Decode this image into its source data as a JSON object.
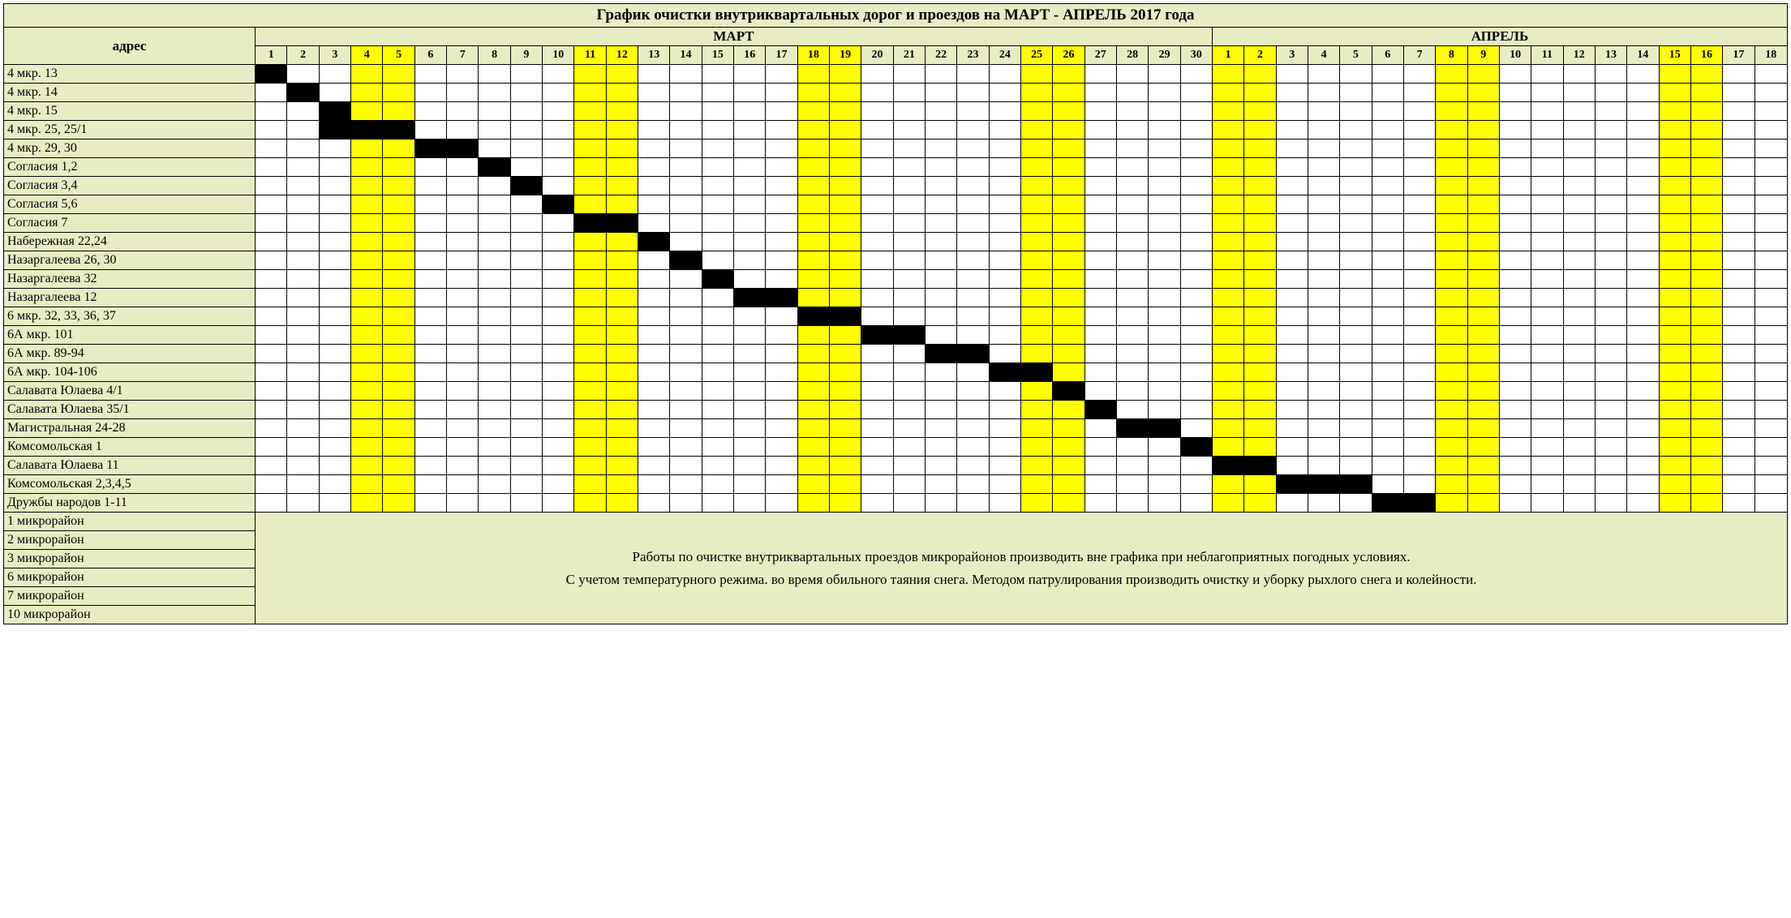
{
  "colors": {
    "header_bg": "#e8ecc5",
    "weekend_bg": "#ffff00",
    "black_fill": "#000000",
    "white_fill": "#ffffff"
  },
  "title": "График очистки внутриквартальных дорог и проездов на МАРТ - АПРЕЛЬ  2017 года",
  "address_header": "адрес",
  "months": [
    {
      "label": "МАРТ",
      "days": 30
    },
    {
      "label": "АПРЕЛЬ",
      "days": 18
    }
  ],
  "march_days": [
    1,
    2,
    3,
    4,
    5,
    6,
    7,
    8,
    9,
    10,
    11,
    12,
    13,
    14,
    15,
    16,
    17,
    18,
    19,
    20,
    21,
    22,
    23,
    24,
    25,
    26,
    27,
    28,
    29,
    30
  ],
  "april_days": [
    1,
    2,
    3,
    4,
    5,
    6,
    7,
    8,
    9,
    10,
    11,
    12,
    13,
    14,
    15,
    16,
    17,
    18
  ],
  "march_weekends": [
    4,
    5,
    11,
    12,
    18,
    19,
    25,
    26
  ],
  "april_weekends": [
    1,
    2,
    8,
    9,
    15,
    16
  ],
  "schedule_rows": [
    {
      "addr": "4 мкр. 13",
      "black": [
        [
          "m",
          1
        ]
      ]
    },
    {
      "addr": "4 мкр. 14",
      "black": [
        [
          "m",
          2
        ]
      ]
    },
    {
      "addr": "4 мкр. 15",
      "black": [
        [
          "m",
          3
        ]
      ]
    },
    {
      "addr": "4 мкр. 25, 25/1",
      "black": [
        [
          "m",
          3
        ],
        [
          "m",
          4
        ],
        [
          "m",
          5
        ]
      ]
    },
    {
      "addr": "4 мкр. 29, 30",
      "black": [
        [
          "m",
          6
        ],
        [
          "m",
          7
        ]
      ]
    },
    {
      "addr": "Согласия 1,2",
      "black": [
        [
          "m",
          8
        ]
      ]
    },
    {
      "addr": "Согласия 3,4",
      "black": [
        [
          "m",
          9
        ]
      ]
    },
    {
      "addr": "Согласия 5,6",
      "black": [
        [
          "m",
          10
        ]
      ]
    },
    {
      "addr": "Согласия 7",
      "black": [
        [
          "m",
          11
        ],
        [
          "m",
          12
        ]
      ]
    },
    {
      "addr": "Набережная 22,24",
      "black": [
        [
          "m",
          13
        ]
      ]
    },
    {
      "addr": "Назаргалеева 26, 30",
      "black": [
        [
          "m",
          14
        ]
      ]
    },
    {
      "addr": "Назаргалеева 32",
      "black": [
        [
          "m",
          15
        ]
      ]
    },
    {
      "addr": "Назаргалеева 12",
      "black": [
        [
          "m",
          16
        ],
        [
          "m",
          17
        ]
      ]
    },
    {
      "addr": "6 мкр. 32, 33, 36, 37",
      "black": [
        [
          "m",
          18
        ],
        [
          "m",
          19
        ]
      ]
    },
    {
      "addr": "6А мкр. 101",
      "black": [
        [
          "m",
          20
        ],
        [
          "m",
          21
        ]
      ]
    },
    {
      "addr": "6А мкр. 89-94",
      "black": [
        [
          "m",
          22
        ],
        [
          "m",
          23
        ]
      ]
    },
    {
      "addr": "6А мкр. 104-106",
      "black": [
        [
          "m",
          24
        ],
        [
          "m",
          25
        ]
      ]
    },
    {
      "addr": "Салавата Юлаева 4/1",
      "black": [
        [
          "m",
          26
        ]
      ]
    },
    {
      "addr": "Салавата Юлаева 35/1",
      "black": [
        [
          "m",
          27
        ]
      ]
    },
    {
      "addr": "Магистральная 24-28",
      "black": [
        [
          "m",
          28
        ],
        [
          "m",
          29
        ]
      ]
    },
    {
      "addr": "Комсомольская 1",
      "black": [
        [
          "m",
          30
        ]
      ]
    },
    {
      "addr": "Салавата Юлаева 11",
      "black": [
        [
          "a",
          1
        ],
        [
          "a",
          2
        ]
      ]
    },
    {
      "addr": "Комсомольская 2,3,4,5",
      "black": [
        [
          "a",
          3
        ],
        [
          "a",
          4
        ],
        [
          "a",
          5
        ]
      ]
    },
    {
      "addr": "Дружбы народов 1-11",
      "black": [
        [
          "a",
          6
        ],
        [
          "a",
          7
        ]
      ]
    }
  ],
  "note_rows": [
    "1 микрорайон",
    "2 микрорайон",
    "3 микрорайон",
    "6 микрорайон",
    "7 микрорайон",
    "10 микрорайон"
  ],
  "note_text_line1": "Работы по очистке  внутриквартальных проездов микрорайонов производить вне графика при неблагоприятных погодных условиях.",
  "note_text_line2": "С учетом температурного режима. во время обильного таяния снега. Методом патрулирования производить очистку и уборку рыхлого снега и колейности."
}
